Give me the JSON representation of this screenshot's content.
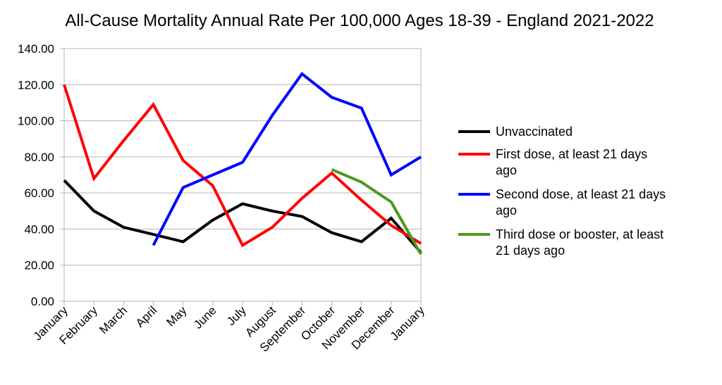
{
  "chart_data": {
    "type": "line",
    "title": "All-Cause Mortality Annual Rate Per 100,000 Ages 18-39 - England 2021-2022",
    "xlabel": "",
    "ylabel": "",
    "ylim": [
      0,
      140
    ],
    "yticks": [
      "0.00",
      "20.00",
      "40.00",
      "60.00",
      "80.00",
      "100.00",
      "120.00",
      "140.00"
    ],
    "grid": true,
    "legend_position": "right",
    "categories": [
      "January",
      "February",
      "March",
      "April",
      "May",
      "June",
      "July",
      "August",
      "September",
      "October",
      "November",
      "December",
      "January"
    ],
    "series": [
      {
        "name": "Unvaccinated",
        "legend_lines": [
          "Unvaccinated"
        ],
        "color": "#000000",
        "values": [
          67,
          50,
          41,
          37,
          33,
          45,
          54,
          50,
          47,
          38,
          33,
          46,
          27
        ]
      },
      {
        "name": "First dose, at least 21 days ago",
        "legend_lines": [
          "First dose, at least 21 days",
          "ago"
        ],
        "color": "#ff0000",
        "values": [
          120,
          68,
          89,
          109,
          78,
          64,
          31,
          41,
          57,
          71,
          56,
          42,
          32
        ]
      },
      {
        "name": "Second dose, at least 21 days ago",
        "legend_lines": [
          "Second dose, at least 21 days",
          "ago"
        ],
        "color": "#0000ff",
        "values": [
          null,
          null,
          null,
          31,
          63,
          70,
          77,
          103,
          126,
          113,
          107,
          70,
          80
        ]
      },
      {
        "name": "Third dose or booster, at least 21 days ago",
        "legend_lines": [
          "Third dose or booster, at least",
          "21 days ago"
        ],
        "color": "#4a9a1a",
        "values": [
          null,
          null,
          null,
          null,
          null,
          null,
          null,
          null,
          null,
          73,
          66,
          55,
          26
        ]
      }
    ]
  }
}
